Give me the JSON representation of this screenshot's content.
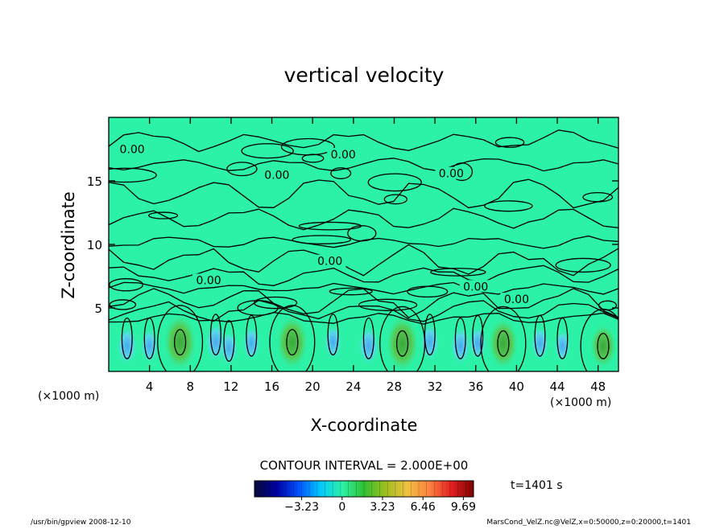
{
  "chart_data": {
    "type": "heatmap",
    "title": "vertical velocity",
    "xlabel": "X-coordinate",
    "ylabel": "Z-coordinate",
    "x_unit_label": "(×1000 m)",
    "xlim": [
      0,
      50
    ],
    "ylim": [
      0,
      20
    ],
    "x_ticks": [
      4,
      8,
      12,
      16,
      20,
      24,
      28,
      32,
      36,
      40,
      44,
      48
    ],
    "y_ticks": [
      5,
      10,
      15
    ],
    "background_color": "#2cf2a8",
    "contour_interval_label": "CONTOUR INTERVAL = 2.000E+00",
    "time_label": "t=1401 s",
    "contour_labels": [
      {
        "x": 2.3,
        "y": 17.3,
        "text": "0.00"
      },
      {
        "x": 23.0,
        "y": 16.9,
        "text": "0.00"
      },
      {
        "x": 16.5,
        "y": 15.3,
        "text": "0.00"
      },
      {
        "x": 33.6,
        "y": 15.4,
        "text": "0.00"
      },
      {
        "x": 9.8,
        "y": 7.0,
        "text": "0.00"
      },
      {
        "x": 21.7,
        "y": 8.5,
        "text": "0.00"
      },
      {
        "x": 36.0,
        "y": 6.5,
        "text": "0.00"
      },
      {
        "x": 40.0,
        "y": 5.5,
        "text": "0.00"
      }
    ],
    "updrafts": [
      {
        "x": 7.0,
        "z": 2.3,
        "value": 6.5
      },
      {
        "x": 18.0,
        "z": 2.3,
        "value": 6.0
      },
      {
        "x": 28.8,
        "z": 2.2,
        "value": 6.5
      },
      {
        "x": 38.7,
        "z": 2.2,
        "value": 5.5
      },
      {
        "x": 48.5,
        "z": 2.0,
        "value": 4.0
      }
    ],
    "downdrafts": [
      {
        "x": 1.8,
        "z": 2.0,
        "value": -2.0
      },
      {
        "x": 4.0,
        "z": 2.0,
        "value": -1.5
      },
      {
        "x": 10.5,
        "z": 2.3,
        "value": -2.0
      },
      {
        "x": 11.8,
        "z": 1.8,
        "value": -1.5
      },
      {
        "x": 14.0,
        "z": 2.2,
        "value": -1.5
      },
      {
        "x": 22.0,
        "z": 2.3,
        "value": -1.5
      },
      {
        "x": 25.5,
        "z": 2.0,
        "value": -2.0
      },
      {
        "x": 31.5,
        "z": 2.3,
        "value": -1.8
      },
      {
        "x": 34.5,
        "z": 2.0,
        "value": -2.0
      },
      {
        "x": 36.2,
        "z": 2.2,
        "value": -1.5
      },
      {
        "x": 42.3,
        "z": 2.2,
        "value": -1.5
      },
      {
        "x": 44.5,
        "z": 2.0,
        "value": -1.2
      }
    ],
    "colorbar": {
      "ticks": [
        {
          "value": -3.23,
          "label": "−3.23"
        },
        {
          "value": 0,
          "label": "0"
        },
        {
          "value": 3.23,
          "label": "3.23"
        },
        {
          "value": 6.46,
          "label": "6.46"
        },
        {
          "value": 9.69,
          "label": "9.69"
        }
      ],
      "range": [
        -7.0,
        10.5
      ],
      "colors": [
        "#080838",
        "#0000a0",
        "#0050ff",
        "#00c8ff",
        "#2cf2a8",
        "#30c030",
        "#a0c020",
        "#f0c040",
        "#ff8040",
        "#e02020",
        "#800000"
      ]
    }
  },
  "footer": {
    "left": "/usr/bin/gpview  2008-12-10",
    "right": "MarsCond_VelZ.nc@VelZ,x=0:50000,z=0:20000,t=1401"
  }
}
